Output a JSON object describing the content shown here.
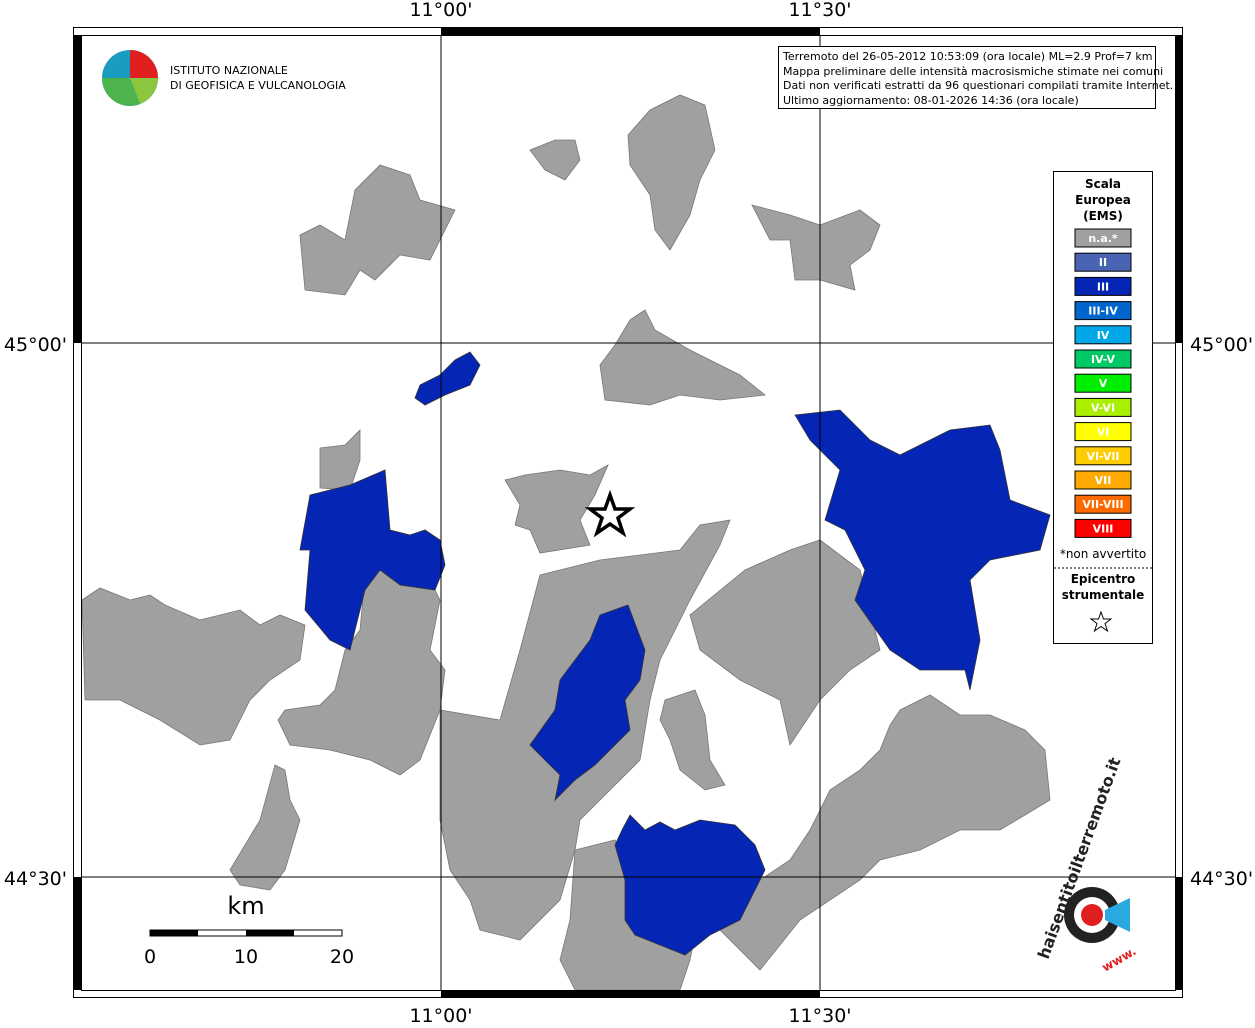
{
  "logo": {
    "lines": [
      "ISTITUTO NAZIONALE",
      "DI GEOFISICA E VULCANOLOGIA"
    ]
  },
  "info": {
    "lines": [
      "Terremoto del 26-05-2012 10:53:09 (ora locale) ML=2.9 Prof=7 km",
      "Mappa preliminare delle intensità macrosismiche stimate nei comuni",
      "Dati non verificati estratti da 96 questionari compilati tramite Internet.",
      "Ultimo aggiornamento: 08-01-2026 14:36 (ora locale)"
    ]
  },
  "axes": {
    "lon_labels": [
      "11°00'",
      "11°30'"
    ],
    "lat_labels": [
      "45°00'",
      "44°30'"
    ]
  },
  "legend": {
    "title": [
      "Scala",
      "Europea",
      "(EMS)"
    ],
    "items": [
      {
        "label": "n.a.*",
        "color": "#a0a0a0"
      },
      {
        "label": "II",
        "color": "#4a64b4"
      },
      {
        "label": "III",
        "color": "#0526b4"
      },
      {
        "label": "III-IV",
        "color": "#0066cc"
      },
      {
        "label": "IV",
        "color": "#00a8ea"
      },
      {
        "label": "IV-V",
        "color": "#00c864"
      },
      {
        "label": "V",
        "color": "#00ee00"
      },
      {
        "label": "V-VI",
        "color": "#aaee00"
      },
      {
        "label": "VI",
        "color": "#ffff00"
      },
      {
        "label": "VI-VII",
        "color": "#ffcc00"
      },
      {
        "label": "VII",
        "color": "#ffaa00"
      },
      {
        "label": "VII-VIII",
        "color": "#ff6a00"
      },
      {
        "label": "VIII",
        "color": "#ff0000"
      }
    ],
    "note": "*non avvertito",
    "epicenter": [
      "Epicentro",
      "strumentale"
    ]
  },
  "scale_bar": {
    "unit": "km",
    "labels": [
      "0",
      "10",
      "20"
    ]
  },
  "watermark": {
    "text": "haisentitoilterremoto.it",
    "prefix": "www."
  }
}
